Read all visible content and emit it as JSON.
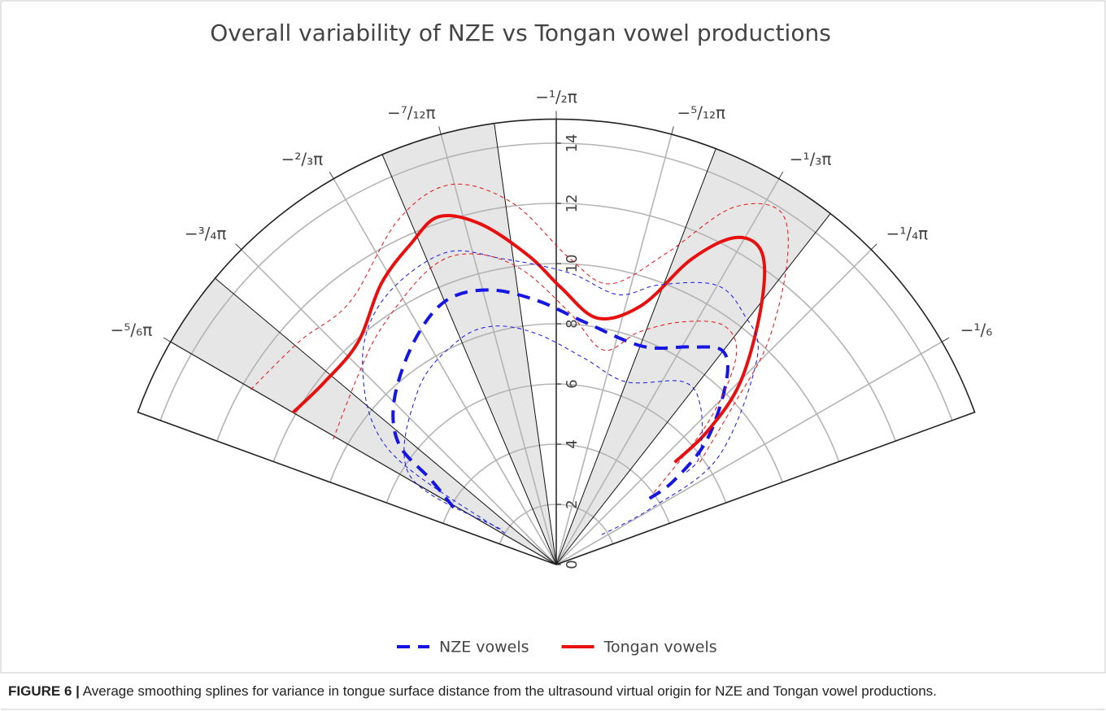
{
  "chart_data": {
    "type": "polar",
    "title": "Overall variability of NZE vs Tongan vowel productions",
    "caption": {
      "label": "FIGURE 6 |",
      "text": "Average smoothing splines for variance in tongue surface distance from the ultrasound virtual origin for NZE and Tongan vowel productions."
    },
    "thetalim": [
      -160,
      -20
    ],
    "thetaticks": [
      {
        "value": -150,
        "label": "−⁵/₆π"
      },
      {
        "value": -135,
        "label": "−³/₄π"
      },
      {
        "value": -120,
        "label": "−²/₃π"
      },
      {
        "value": -105,
        "label": "−⁷/₁₂π"
      },
      {
        "value": -90,
        "label": "−¹/₂π"
      },
      {
        "value": -75,
        "label": "−⁵/₁₂π"
      },
      {
        "value": -60,
        "label": "−¹/₃π"
      },
      {
        "value": -45,
        "label": "−¹/₄π"
      },
      {
        "value": -30,
        "label": "−¹/₆"
      }
    ],
    "rlim": [
      0,
      14.8
    ],
    "rticks": [
      0,
      2,
      4,
      6,
      8,
      10,
      12,
      14
    ],
    "grid": true,
    "shaded_sectors": [
      [
        -150,
        -140
      ],
      [
        -113,
        -98
      ],
      [
        -69,
        -52
      ]
    ],
    "series": [
      {
        "name": "NZE vowels",
        "color": "#1515e6",
        "dash": "dashed",
        "width": 4,
        "theta": [
          -151,
          -146,
          -142.5,
          -134.3,
          -122.4,
          -112.8,
          -103.9,
          -94.2,
          -83.1,
          -68.3,
          -58.3,
          -52.1,
          -47.1,
          -39.6,
          -35.5,
          -35.3
        ],
        "r": [
          3.9,
          5.0,
          6.6,
          7.7,
          8.8,
          9.5,
          9.4,
          8.8,
          8.1,
          7.8,
          8.5,
          9.0,
          8.3,
          6.5,
          4.8,
          3.8
        ]
      },
      {
        "name": "Tongan vowels",
        "color": "#e8100f",
        "dash": "solid",
        "width": 4,
        "theta": [
          -150,
          -141.7,
          -131.7,
          -121.9,
          -114.4,
          -108.7,
          -102.6,
          -95.1,
          -89,
          -80.4,
          -71.6,
          -66.1,
          -61.2,
          -56.5,
          -51.4,
          -44.7,
          -41.4,
          -40.8
        ],
        "r": [
          10.1,
          9.8,
          9.9,
          11.0,
          11.7,
          12.2,
          11.6,
          10.3,
          9.2,
          8.3,
          9.1,
          11.1,
          12.4,
          12.4,
          10.9,
          8.6,
          6.7,
          5.2
        ]
      },
      {
        "color": "#1515e6",
        "dash": "thin",
        "width": 1,
        "theta": [
          -148.6,
          -145.7,
          -134.4,
          -123.4,
          -109.9,
          -99.7,
          -87.4,
          -77.1,
          -69.8,
          -60.2,
          -53.2,
          -45.9,
          -33.7,
          -30.7,
          -33.7
        ],
        "r": [
          2.0,
          6.7,
          9.2,
          10.5,
          11.0,
          10.3,
          9.7,
          9.2,
          9.9,
          10.7,
          10.4,
          9.6,
          6.5,
          3.7,
          1.7
        ]
      },
      {
        "color": "#1515e6",
        "dash": "thin",
        "width": 1,
        "theta": [
          -147.5,
          -148.7,
          -128.3,
          -114.3,
          -105.1,
          -94.9,
          -81.9,
          -69,
          -55.1,
          -47.5,
          -37.3,
          -35.3
        ],
        "r": [
          2.2,
          5.7,
          7.4,
          8.1,
          8.2,
          7.7,
          6.9,
          6.5,
          7.4,
          7.1,
          6.0,
          5.3
        ]
      },
      {
        "color": "#e8100f",
        "dash": "thin",
        "width": 1,
        "theta": [
          -150.2,
          -138.9,
          -128.1,
          -114.6,
          -105.5,
          -96.9,
          -87.6,
          -79.1,
          -70.4,
          -63.8,
          -57.7,
          -52.8,
          -46.4,
          -41.9,
          -35.2
        ],
        "r": [
          11.7,
          11.3,
          11.1,
          12.6,
          13.1,
          12.1,
          10.2,
          9.5,
          11.0,
          13.2,
          13.9,
          12.7,
          10.2,
          7.9,
          5.8
        ]
      },
      {
        "color": "#e8100f",
        "dash": "thin",
        "width": 1,
        "theta": [
          -150.7,
          -136.4,
          -126.1,
          -113,
          -105.2,
          -96.9,
          -87.1,
          -77.6,
          -70.4,
          -62.4,
          -54.8,
          -49,
          -43.1,
          -35.9
        ],
        "r": [
          8.5,
          9.1,
          9.8,
          10.7,
          10.7,
          9.9,
          8.4,
          7.3,
          8.2,
          9.1,
          9.7,
          9.1,
          6.9,
          3.9
        ]
      }
    ]
  }
}
